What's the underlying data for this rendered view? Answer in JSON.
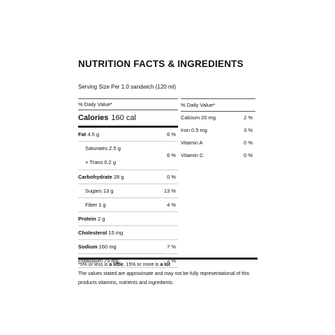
{
  "title": "NUTRITION FACTS & INGREDIENTS",
  "serving": "Serving Size Per 1.0 sandwich (120 ml)",
  "daily_value_header": "% Daily Value*",
  "calories": {
    "label": "Calories",
    "value": "160 cal"
  },
  "left_rows": {
    "fat": {
      "name": "Fat",
      "amount": "4.5 g",
      "pct": "6 %"
    },
    "sat_trans": {
      "sat": "Saturates 2.5 g",
      "trans": "+ Trans 0.2 g",
      "pct": "6 %"
    },
    "carb": {
      "name": "Carbohydrate",
      "amount": "28 g",
      "pct": "0 %"
    },
    "sugars": {
      "label": "Sugars 13 g",
      "pct": "13 %"
    },
    "fiber": {
      "label": "Fiber 1 g",
      "pct": "4 %"
    },
    "protein": {
      "name": "Protein",
      "amount": "2 g"
    },
    "cholesterol": {
      "name": "Cholesterol",
      "amount": "15 mg"
    },
    "sodium": {
      "name": "Sodium",
      "amount": "160 mg",
      "pct": "7 %"
    },
    "potassium": {
      "label": "Potassium 75 mg",
      "pct": "2 %"
    }
  },
  "right_rows": {
    "calcium": {
      "label": "Calcium 20 mg",
      "pct": "2 %"
    },
    "iron": {
      "label": "Iron 0.5 mg",
      "pct": "3 %"
    },
    "vitamin_a": {
      "label": "Vitamin A",
      "pct": "0 %"
    },
    "vitamin_c": {
      "label": "Vitamin C",
      "pct": "0 %"
    }
  },
  "footer": {
    "p1": "*5% or less is ",
    "little": "a little",
    "p2": ", 15% or more is ",
    "lot": "a lot",
    "note": "The values stated are approximate and may not be fully representational of this products vitamins, nutrients and ingredients."
  }
}
